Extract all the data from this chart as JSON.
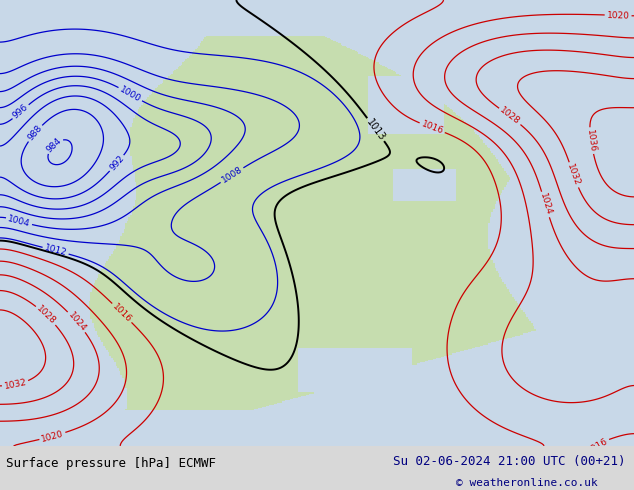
{
  "title_left": "Surface pressure [hPa] ECMWF",
  "title_right": "Su 02-06-2024 21:00 UTC (00+21)",
  "copyright": "© weatheronline.co.uk",
  "bg_color": "#d8d8d8",
  "ocean_color": "#c8d8e8",
  "land_color": "#c8ddb0",
  "label_left_color": "#000000",
  "copyright_color": "#000080",
  "font_size_labels": 9,
  "font_size_copyright": 8,
  "figsize": [
    6.34,
    4.9
  ],
  "dpi": 100
}
